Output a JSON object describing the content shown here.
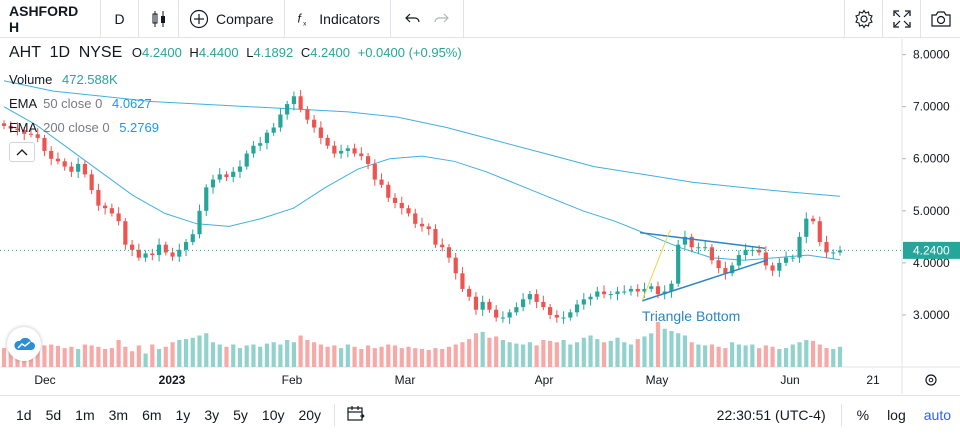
{
  "toolbar": {
    "symbol": "ASHFORD H",
    "interval": "D",
    "compare_label": "Compare",
    "indicators_label": "Indicators",
    "icons": [
      "candles-icon",
      "plus-circle-icon",
      "fx-icon",
      "undo-icon",
      "redo-icon",
      "gear-icon",
      "fullscreen-icon",
      "camera-icon"
    ]
  },
  "legend": {
    "symbol": "AHT",
    "interval": "1D",
    "exchange": "NYSE",
    "open_label": "O",
    "open": "4.2400",
    "high_label": "H",
    "high": "4.4400",
    "low_label": "L",
    "low": "4.1892",
    "close_label": "C",
    "close": "4.2400",
    "change": "+0.0400 (+0.95%)",
    "volume_label": "Volume",
    "volume": "472.588K",
    "ema50_label": "EMA",
    "ema50_params": "50 close 0",
    "ema50_value": "4.0627",
    "ema200_label": "EMA",
    "ema200_params": "200 close 0",
    "ema200_value": "5.2769"
  },
  "pattern_label": "Triangle Bottom",
  "last_price_tag": "4.2400",
  "bottom": {
    "ranges": [
      "1d",
      "5d",
      "1m",
      "3m",
      "6m",
      "1y",
      "3y",
      "5y",
      "10y",
      "20y"
    ],
    "time": "22:30:51 (UTC-4)",
    "percent": "%",
    "log": "log",
    "auto": "auto"
  },
  "colors": {
    "up": "#26a69a",
    "down": "#ef5350",
    "vol_up": "#92d2cc",
    "vol_down": "#f7a9a7",
    "ema": "#40b0e0",
    "pattern": "#2c84c6",
    "accent": "#2962ff"
  },
  "chart_data": {
    "type": "candlestick",
    "ylim": [
      2.0,
      8.3
    ],
    "y_ticks": [
      "8.0000",
      "7.0000",
      "6.0000",
      "5.0000",
      "4.0000",
      "3.0000"
    ],
    "x_labels": [
      "Dec",
      "2023",
      "Feb",
      "Mar",
      "Apr",
      "May",
      "Jun",
      "21"
    ],
    "close": [
      6.63,
      6.58,
      6.55,
      6.48,
      6.47,
      6.4,
      6.15,
      6.0,
      5.95,
      5.85,
      5.75,
      5.9,
      5.7,
      5.4,
      5.1,
      5.05,
      4.95,
      4.8,
      4.35,
      4.25,
      4.1,
      4.18,
      4.15,
      4.35,
      4.2,
      4.12,
      4.25,
      4.4,
      4.55,
      5.0,
      5.45,
      5.6,
      5.7,
      5.65,
      5.75,
      5.85,
      6.1,
      6.25,
      6.3,
      6.5,
      6.6,
      6.85,
      7.05,
      7.2,
      6.95,
      6.75,
      6.6,
      6.4,
      6.25,
      6.1,
      6.15,
      6.2,
      6.1,
      6.05,
      5.9,
      5.6,
      5.5,
      5.25,
      5.15,
      5.05,
      4.95,
      4.75,
      4.7,
      4.65,
      4.35,
      4.3,
      4.1,
      3.8,
      3.5,
      3.35,
      3.1,
      3.25,
      3.1,
      2.95,
      2.95,
      3.05,
      3.15,
      3.3,
      3.4,
      3.25,
      3.15,
      3.0,
      2.95,
      2.95,
      3.05,
      3.2,
      3.3,
      3.35,
      3.45,
      3.4,
      3.4,
      3.45,
      3.45,
      3.5,
      3.45,
      3.5,
      3.55,
      3.4,
      3.45,
      3.6,
      4.35,
      4.5,
      4.3,
      4.3,
      4.3,
      4.05,
      3.9,
      3.8,
      3.95,
      4.15,
      4.25,
      4.25,
      4.2,
      3.95,
      3.85,
      4.0,
      4.1,
      4.1,
      4.5,
      4.85,
      4.8,
      4.4,
      4.2,
      4.2,
      4.24
    ],
    "volume_rel": [
      0.42,
      0.4,
      0.5,
      0.38,
      0.55,
      0.45,
      0.48,
      0.5,
      0.47,
      0.42,
      0.45,
      0.4,
      0.5,
      0.48,
      0.45,
      0.4,
      0.42,
      0.6,
      0.45,
      0.35,
      0.48,
      0.3,
      0.5,
      0.4,
      0.45,
      0.55,
      0.6,
      0.62,
      0.65,
      0.7,
      0.75,
      0.55,
      0.5,
      0.45,
      0.5,
      0.42,
      0.48,
      0.5,
      0.45,
      0.52,
      0.55,
      0.5,
      0.6,
      0.55,
      0.7,
      0.6,
      0.55,
      0.5,
      0.45,
      0.48,
      0.42,
      0.5,
      0.45,
      0.4,
      0.48,
      0.42,
      0.45,
      0.5,
      0.48,
      0.42,
      0.45,
      0.42,
      0.4,
      0.38,
      0.42,
      0.4,
      0.45,
      0.5,
      0.55,
      0.62,
      0.75,
      0.78,
      0.65,
      0.68,
      0.6,
      0.55,
      0.52,
      0.5,
      0.55,
      0.48,
      0.6,
      0.58,
      0.55,
      0.6,
      0.5,
      0.55,
      0.65,
      0.7,
      0.62,
      0.55,
      0.58,
      0.65,
      0.55,
      0.5,
      0.62,
      0.68,
      0.75,
      1.0,
      0.85,
      0.8,
      0.75,
      0.7,
      0.55,
      0.5,
      0.48,
      0.5,
      0.45,
      0.42,
      0.55,
      0.5,
      0.48,
      0.5,
      0.42,
      0.48,
      0.45,
      0.4,
      0.42,
      0.5,
      0.55,
      0.6,
      0.58,
      0.5,
      0.42,
      0.4,
      0.45
    ],
    "ema50": [
      7.0,
      6.65,
      6.2,
      5.75,
      5.3,
      4.95,
      4.75,
      4.7,
      4.85,
      5.05,
      5.45,
      5.8,
      6.0,
      6.05,
      5.95,
      5.75,
      5.5,
      5.25,
      5.0,
      4.8,
      4.55,
      4.3,
      4.1,
      4.05,
      4.1,
      4.15,
      4.06
    ],
    "ema200": [
      7.5,
      7.3,
      7.2,
      7.1,
      7.05,
      7.0,
      6.95,
      6.9,
      6.8,
      6.6,
      6.35,
      6.1,
      5.85,
      5.7,
      5.55,
      5.45,
      5.36,
      5.28
    ],
    "triangle_upper": [
      4.58,
      4.28
    ],
    "triangle_lower": [
      3.27,
      4.06
    ]
  }
}
